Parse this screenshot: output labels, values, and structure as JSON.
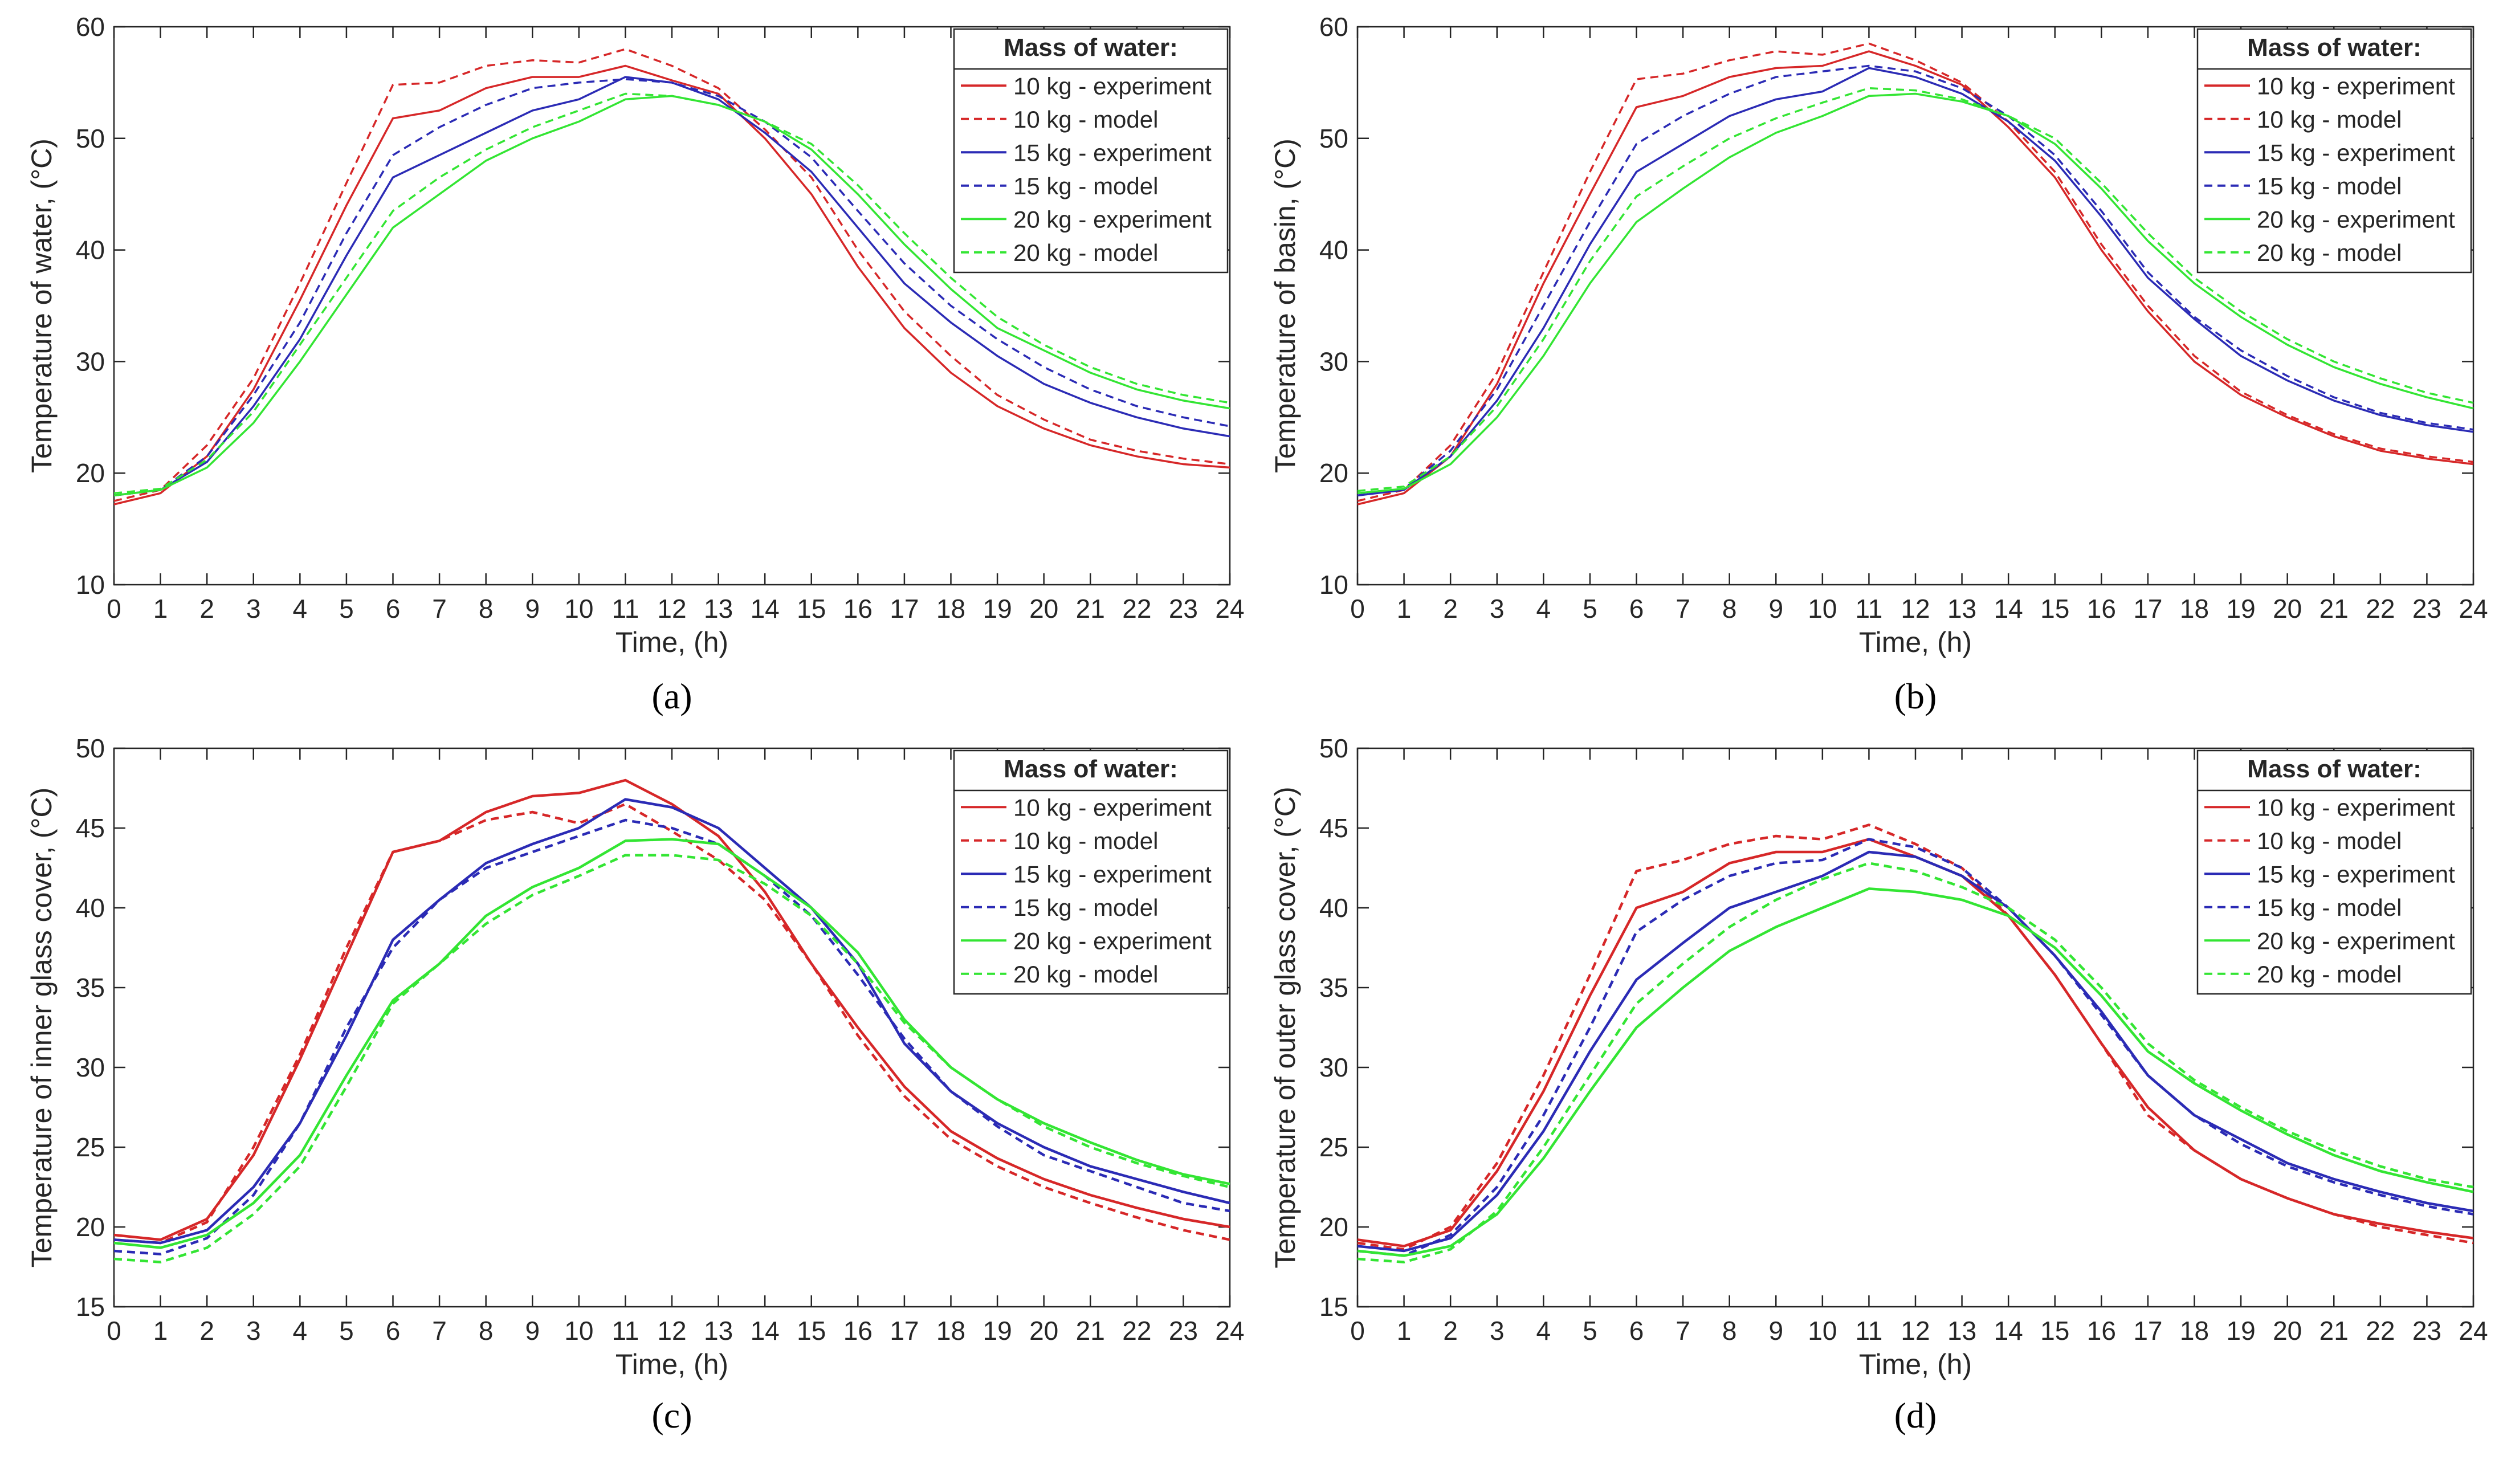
{
  "figure": {
    "panel_labels": [
      "(a)",
      "(b)",
      "(c)",
      "(d)"
    ],
    "legend_title": "Mass of water:"
  },
  "chart_data": [
    {
      "type": "line",
      "panel": "(a)",
      "xlabel": "Time, (h)",
      "ylabel": "Temperature of water, (°C)",
      "xlim": [
        0,
        24
      ],
      "ylim": [
        10,
        60
      ],
      "xticks": [
        0,
        1,
        2,
        3,
        4,
        5,
        6,
        7,
        8,
        9,
        10,
        11,
        12,
        13,
        14,
        15,
        16,
        17,
        18,
        19,
        20,
        21,
        22,
        23,
        24
      ],
      "yticks": [
        10,
        20,
        30,
        40,
        50,
        60
      ],
      "x": [
        0,
        1,
        2,
        3,
        4,
        5,
        6,
        7,
        8,
        9,
        10,
        11,
        12,
        13,
        14,
        15,
        16,
        17,
        18,
        19,
        20,
        21,
        22,
        23,
        24
      ],
      "series": [
        {
          "name": "10 kg - experiment",
          "color": "#d62728",
          "dash": false,
          "values": [
            17.2,
            18.2,
            21.5,
            27.5,
            35.5,
            44,
            51.8,
            52.5,
            54.5,
            55.5,
            55.5,
            56.5,
            55.2,
            54,
            50,
            45,
            38.5,
            33,
            29,
            26,
            24,
            22.5,
            21.5,
            20.8,
            20.5
          ]
        },
        {
          "name": "10 kg - model",
          "color": "#d62728",
          "dash": true,
          "values": [
            17.5,
            18.5,
            22.5,
            28.5,
            37,
            46,
            54.8,
            55,
            56.5,
            57,
            56.8,
            58,
            56.5,
            54.5,
            50.8,
            46.5,
            40,
            34.5,
            30.5,
            27,
            24.8,
            23,
            22,
            21.3,
            20.8
          ]
        },
        {
          "name": "15 kg - experiment",
          "color": "#2b2bb5",
          "dash": false,
          "values": [
            18,
            18.5,
            21,
            26,
            32,
            39.5,
            46.5,
            48.5,
            50.5,
            52.5,
            53.5,
            55.5,
            55,
            53.5,
            50.5,
            47,
            42,
            37,
            33.5,
            30.5,
            28,
            26.3,
            25,
            24,
            23.3
          ]
        },
        {
          "name": "15 kg - model",
          "color": "#2b2bb5",
          "dash": true,
          "values": [
            18,
            18.5,
            21.5,
            27,
            33.5,
            41.5,
            48.5,
            51,
            53,
            54.5,
            55,
            55.3,
            55,
            53.8,
            51.5,
            48.3,
            43.5,
            38.8,
            35,
            32,
            29.5,
            27.5,
            26,
            25,
            24.2
          ]
        },
        {
          "name": "20 kg - experiment",
          "color": "#33e533",
          "dash": false,
          "values": [
            18,
            18.5,
            20.5,
            24.5,
            30,
            36,
            42,
            45,
            48,
            50,
            51.5,
            53.5,
            53.8,
            53,
            51.5,
            49,
            45,
            40.5,
            36.5,
            33,
            31,
            29,
            27.5,
            26.5,
            25.8
          ]
        },
        {
          "name": "20 kg - model",
          "color": "#33e533",
          "dash": true,
          "values": [
            18.2,
            18.6,
            21.2,
            25.5,
            31.5,
            37.5,
            43.5,
            46.5,
            49,
            51,
            52.5,
            54,
            53.8,
            53,
            51.5,
            49.5,
            45.8,
            41.5,
            37.5,
            34,
            31.5,
            29.5,
            28,
            27,
            26.3
          ]
        }
      ]
    },
    {
      "type": "line",
      "panel": "(b)",
      "xlabel": "Time, (h)",
      "ylabel": "Temperature of basin, (°C)",
      "xlim": [
        0,
        24
      ],
      "ylim": [
        10,
        60
      ],
      "xticks": [
        0,
        1,
        2,
        3,
        4,
        5,
        6,
        7,
        8,
        9,
        10,
        11,
        12,
        13,
        14,
        15,
        16,
        17,
        18,
        19,
        20,
        21,
        22,
        23,
        24
      ],
      "yticks": [
        10,
        20,
        30,
        40,
        50,
        60
      ],
      "x": [
        0,
        1,
        2,
        3,
        4,
        5,
        6,
        7,
        8,
        9,
        10,
        11,
        12,
        13,
        14,
        15,
        16,
        17,
        18,
        19,
        20,
        21,
        22,
        23,
        24
      ],
      "series": [
        {
          "name": "10 kg - experiment",
          "color": "#d62728",
          "dash": false,
          "values": [
            17.2,
            18.2,
            21.5,
            28,
            37,
            45,
            52.8,
            53.8,
            55.5,
            56.3,
            56.5,
            57.8,
            56.5,
            54.8,
            51,
            46.5,
            40,
            34.5,
            30,
            27,
            25,
            23.3,
            22,
            21.3,
            20.8
          ]
        },
        {
          "name": "10 kg - model",
          "color": "#d62728",
          "dash": true,
          "values": [
            17.5,
            18.5,
            22.5,
            29,
            38,
            47,
            55.3,
            55.8,
            57,
            57.8,
            57.5,
            58.5,
            57,
            55,
            51.5,
            47,
            40.5,
            35,
            30.5,
            27.3,
            25.2,
            23.5,
            22.2,
            21.5,
            21
          ]
        },
        {
          "name": "15 kg - experiment",
          "color": "#2b2bb5",
          "dash": false,
          "values": [
            18,
            18.5,
            21.5,
            26.5,
            33,
            40.5,
            47,
            49.5,
            52,
            53.5,
            54.2,
            56.3,
            55.5,
            54,
            51.5,
            48,
            43,
            37.5,
            33.8,
            30.5,
            28.3,
            26.5,
            25.2,
            24.3,
            23.7
          ]
        },
        {
          "name": "15 kg - model",
          "color": "#2b2bb5",
          "dash": true,
          "values": [
            18,
            18.6,
            22,
            27.5,
            35,
            42.5,
            49.5,
            52,
            54,
            55.5,
            56,
            56.5,
            56,
            54.5,
            52,
            48.5,
            43.5,
            38,
            34,
            31,
            28.7,
            26.8,
            25.4,
            24.5,
            23.9
          ]
        },
        {
          "name": "20 kg - experiment",
          "color": "#33e533",
          "dash": false,
          "values": [
            18.2,
            18.6,
            20.8,
            25,
            30.5,
            37,
            42.5,
            45.5,
            48.3,
            50.5,
            52,
            53.8,
            54,
            53.3,
            52,
            49.5,
            45.5,
            40.8,
            37,
            34,
            31.5,
            29.5,
            28,
            26.8,
            25.8
          ]
        },
        {
          "name": "20 kg - model",
          "color": "#33e533",
          "dash": true,
          "values": [
            18.4,
            18.8,
            21.5,
            26,
            32,
            39,
            44.8,
            47.5,
            50,
            51.8,
            53.2,
            54.5,
            54.3,
            53.5,
            52,
            50,
            46,
            41.5,
            37.5,
            34.5,
            32,
            30,
            28.5,
            27.2,
            26.3
          ]
        }
      ]
    },
    {
      "type": "line",
      "panel": "(c)",
      "xlabel": "Time, (h)",
      "ylabel": "Temperature of inner glass cover, (°C)",
      "xlim": [
        0,
        24
      ],
      "ylim": [
        15,
        50
      ],
      "xticks": [
        0,
        1,
        2,
        3,
        4,
        5,
        6,
        7,
        8,
        9,
        10,
        11,
        12,
        13,
        14,
        15,
        16,
        17,
        18,
        19,
        20,
        21,
        22,
        23,
        24
      ],
      "yticks": [
        15,
        20,
        25,
        30,
        35,
        40,
        45,
        50
      ],
      "x": [
        0,
        1,
        2,
        3,
        4,
        5,
        6,
        7,
        8,
        9,
        10,
        11,
        12,
        13,
        14,
        15,
        16,
        17,
        18,
        19,
        20,
        21,
        22,
        23,
        24
      ],
      "series": [
        {
          "name": "10 kg - experiment",
          "color": "#d62728",
          "dash": false,
          "values": [
            19.5,
            19.2,
            20.5,
            24.5,
            30.5,
            37,
            43.5,
            44.2,
            46,
            47,
            47.2,
            48,
            46.5,
            44.5,
            41,
            36.5,
            32.5,
            28.8,
            26,
            24.3,
            23,
            22,
            21.2,
            20.5,
            20
          ]
        },
        {
          "name": "10 kg - model",
          "color": "#d62728",
          "dash": true,
          "values": [
            19.2,
            19,
            20.3,
            25,
            30.8,
            37.5,
            43.5,
            44.2,
            45.5,
            46,
            45.3,
            46.5,
            44.8,
            43,
            40.5,
            36.5,
            32,
            28.2,
            25.5,
            23.8,
            22.5,
            21.5,
            20.6,
            19.8,
            19.2
          ]
        },
        {
          "name": "15 kg - experiment",
          "color": "#2b2bb5",
          "dash": false,
          "values": [
            19.2,
            19,
            19.8,
            22.5,
            26.5,
            32,
            38,
            40.5,
            42.8,
            44,
            45,
            46.8,
            46.3,
            45,
            42.5,
            40,
            36.5,
            31.5,
            28.5,
            26.5,
            25,
            23.8,
            23,
            22.2,
            21.5
          ]
        },
        {
          "name": "15 kg - model",
          "color": "#2b2bb5",
          "dash": true,
          "values": [
            18.5,
            18.3,
            19.3,
            22,
            26.5,
            32.5,
            37.5,
            40.5,
            42.5,
            43.5,
            44.5,
            45.5,
            45,
            44,
            42,
            39.5,
            35.8,
            31.8,
            28.5,
            26.3,
            24.5,
            23.5,
            22.5,
            21.5,
            21
          ]
        },
        {
          "name": "20 kg - experiment",
          "color": "#33e533",
          "dash": false,
          "values": [
            19,
            18.7,
            19.5,
            21.5,
            24.5,
            29.5,
            34.2,
            36.5,
            39.5,
            41.3,
            42.5,
            44.2,
            44.3,
            44,
            42,
            40,
            37.2,
            33,
            30,
            28,
            26.5,
            25.3,
            24.2,
            23.3,
            22.7
          ]
        },
        {
          "name": "20 kg - model",
          "color": "#33e533",
          "dash": true,
          "values": [
            18,
            17.8,
            18.7,
            20.8,
            23.8,
            28.8,
            34,
            36.5,
            39,
            40.8,
            42,
            43.3,
            43.3,
            43,
            41.5,
            39.5,
            36.5,
            32.8,
            30,
            28,
            26.3,
            25,
            24,
            23.2,
            22.5
          ]
        }
      ]
    },
    {
      "type": "line",
      "panel": "(d)",
      "xlabel": "Time, (h)",
      "ylabel": "Temperature of outer glass cover, (°C)",
      "xlim": [
        0,
        24
      ],
      "ylim": [
        15,
        50
      ],
      "xticks": [
        0,
        1,
        2,
        3,
        4,
        5,
        6,
        7,
        8,
        9,
        10,
        11,
        12,
        13,
        14,
        15,
        16,
        17,
        18,
        19,
        20,
        21,
        22,
        23,
        24
      ],
      "yticks": [
        15,
        20,
        25,
        30,
        35,
        40,
        45,
        50
      ],
      "x": [
        0,
        1,
        2,
        3,
        4,
        5,
        6,
        7,
        8,
        9,
        10,
        11,
        12,
        13,
        14,
        15,
        16,
        17,
        18,
        19,
        20,
        21,
        22,
        23,
        24
      ],
      "series": [
        {
          "name": "10 kg - experiment",
          "color": "#d62728",
          "dash": false,
          "values": [
            19.2,
            18.8,
            19.8,
            23.5,
            28.5,
            34.5,
            40,
            41,
            42.8,
            43.5,
            43.5,
            44.3,
            43.2,
            42,
            39.5,
            35.8,
            31.5,
            27.5,
            24.8,
            23,
            21.8,
            20.8,
            20.2,
            19.7,
            19.3
          ]
        },
        {
          "name": "10 kg - model",
          "color": "#d62728",
          "dash": true,
          "values": [
            19,
            18.6,
            20,
            24,
            29.5,
            35.8,
            42.3,
            43,
            44,
            44.5,
            44.3,
            45.2,
            44,
            42.5,
            39.5,
            35.8,
            31.5,
            27,
            24.8,
            23,
            21.8,
            20.8,
            20,
            19.5,
            19
          ]
        },
        {
          "name": "15 kg - experiment",
          "color": "#2b2bb5",
          "dash": false,
          "values": [
            18.8,
            18.5,
            19.3,
            22,
            26,
            31,
            35.5,
            37.8,
            40,
            41,
            42,
            43.5,
            43.2,
            42,
            40,
            37,
            33.5,
            29.5,
            27,
            25.5,
            24,
            23,
            22.2,
            21.5,
            21
          ]
        },
        {
          "name": "15 kg - model",
          "color": "#2b2bb5",
          "dash": true,
          "values": [
            18.5,
            18.2,
            19.5,
            22.5,
            27,
            32.5,
            38.5,
            40.5,
            42,
            42.8,
            43,
            44.3,
            43.8,
            42.5,
            40,
            37,
            33.3,
            29.5,
            27,
            25.2,
            23.8,
            22.8,
            22,
            21.3,
            20.8
          ]
        },
        {
          "name": "20 kg - experiment",
          "color": "#33e533",
          "dash": false,
          "values": [
            18.5,
            18.2,
            18.8,
            20.8,
            24.3,
            28.5,
            32.5,
            35,
            37.3,
            38.8,
            40,
            41.2,
            41,
            40.5,
            39.5,
            37.5,
            34.5,
            31,
            29,
            27.3,
            25.8,
            24.5,
            23.5,
            22.8,
            22.2
          ]
        },
        {
          "name": "20 kg - model",
          "color": "#33e533",
          "dash": true,
          "values": [
            18,
            17.8,
            18.6,
            21,
            25,
            29.5,
            34,
            36.5,
            38.8,
            40.5,
            41.8,
            42.8,
            42.3,
            41.3,
            40,
            38,
            35,
            31.5,
            29.2,
            27.5,
            26,
            24.8,
            23.8,
            23,
            22.5
          ]
        }
      ]
    }
  ]
}
